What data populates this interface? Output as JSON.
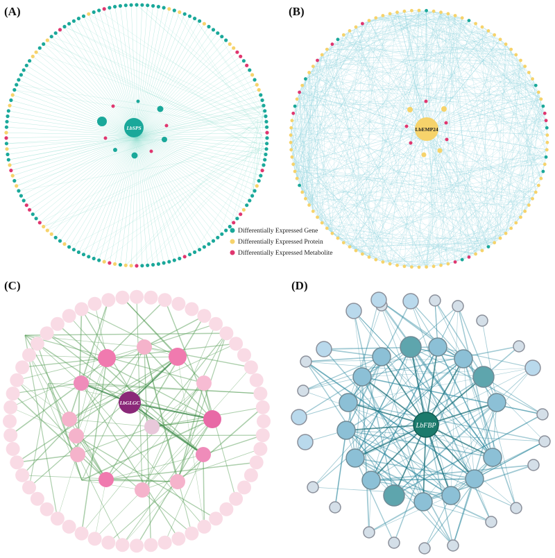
{
  "panels": {
    "A": {
      "label": "(A)",
      "hub": "LbSPS"
    },
    "B": {
      "label": "(B)",
      "hub": "LbEMP24"
    },
    "C": {
      "label": "(C)",
      "hub": "LbGLGC"
    },
    "D": {
      "label": "(D)",
      "hub": "LbFBP"
    }
  },
  "legend": {
    "items": [
      {
        "label": "Differentially Expressed Gene",
        "color": "#1aa89a"
      },
      {
        "label": "Differentially Expressed Protein",
        "color": "#f6d36b"
      },
      {
        "label": "Differentially Expressed Metabolite",
        "color": "#e0366f"
      }
    ]
  },
  "colors": {
    "gene": "#1aa89a",
    "protein": "#f6d36b",
    "metabolite": "#e0366f",
    "edgeA": "#7fd8c8",
    "edgeB": "#93d6e0",
    "edgeC": "#5aa05a",
    "edgeD": "#2f8aa0",
    "hubC": "#8a2878",
    "hubD": "#1b7a6c"
  }
}
